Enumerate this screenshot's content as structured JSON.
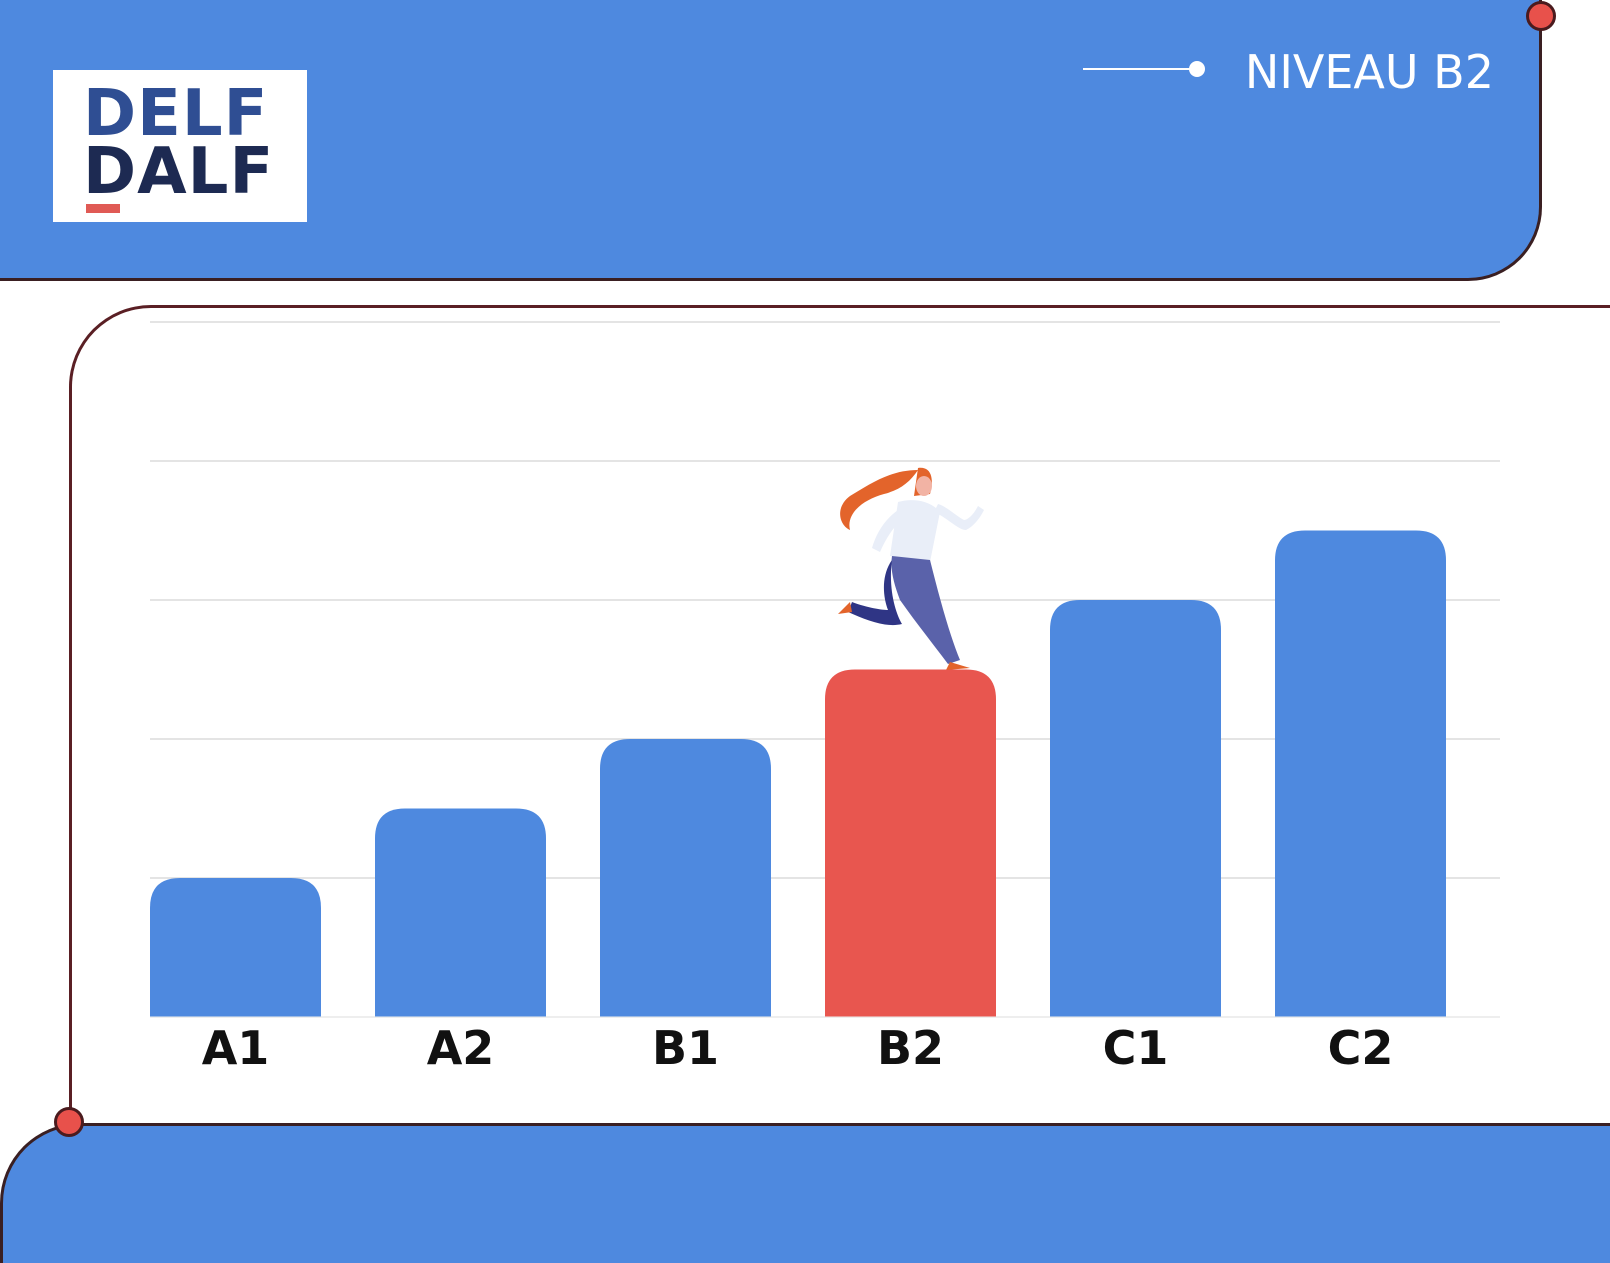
{
  "header": {
    "logo": {
      "line1": "DELF",
      "line2": "DALF"
    },
    "level_tag": "NIVEAU B2"
  },
  "colors": {
    "band": "#4e89df",
    "highlight": "#e8564f",
    "frame": "#5a1f24",
    "grid": "#dcdcdc",
    "label": "#111111"
  },
  "illustration": {
    "icon": "running-woman-icon",
    "on_category": "B2"
  },
  "chart_data": {
    "type": "bar",
    "categories": [
      "A1",
      "A2",
      "B1",
      "B2",
      "C1",
      "C2"
    ],
    "values": [
      1,
      1.5,
      2,
      2.5,
      3,
      3.5
    ],
    "highlight": "B2",
    "ylim": [
      0,
      5
    ],
    "grid": true,
    "xlabel": "",
    "ylabel": ""
  }
}
